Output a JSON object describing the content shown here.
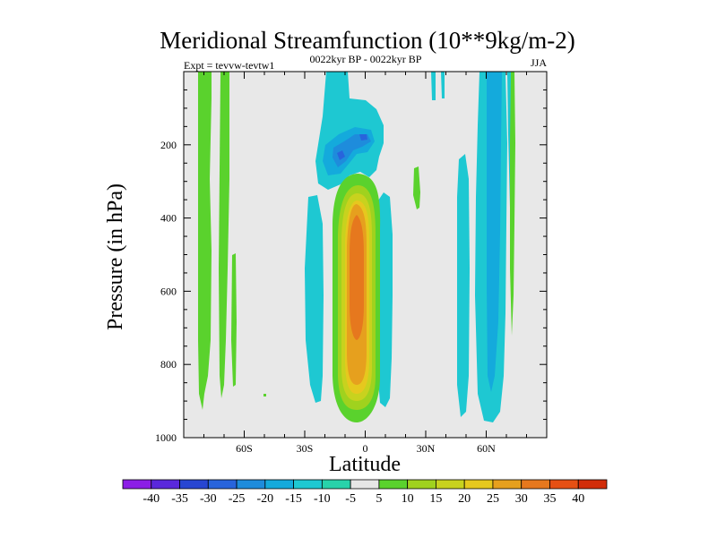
{
  "chart_data": {
    "type": "contour",
    "title": "Meridional Streamfunction (10**9kg/m-2)",
    "left_string": "Expt = tevvw-tevtw1",
    "center_string": "0022kyr BP - 0022kyr BP",
    "right_string": "JJA",
    "xlabel": "Latitude",
    "ylabel": "Pressure (in hPa)",
    "xlim": [
      -90,
      90
    ],
    "ylim": [
      1000,
      0
    ],
    "x_ticks": [
      {
        "value": -60,
        "label": "60S"
      },
      {
        "value": -30,
        "label": "30S"
      },
      {
        "value": 0,
        "label": "0"
      },
      {
        "value": 30,
        "label": "30N"
      },
      {
        "value": 60,
        "label": "60N"
      }
    ],
    "y_ticks": [
      {
        "value": 200,
        "label": "200"
      },
      {
        "value": 400,
        "label": "400"
      },
      {
        "value": 600,
        "label": "600"
      },
      {
        "value": 800,
        "label": "800"
      },
      {
        "value": 1000,
        "label": "1000"
      }
    ],
    "background_color": "#e8e8e8",
    "colorbar": {
      "labels": [
        "-40",
        "-35",
        "-30",
        "-25",
        "-20",
        "-15",
        "-10",
        "-5",
        "5",
        "10",
        "15",
        "20",
        "25",
        "30",
        "35",
        "40"
      ],
      "colors": [
        "#8c1ee6",
        "#5a28dc",
        "#2846d2",
        "#2864dc",
        "#1e8cdc",
        "#14aadc",
        "#1ec8d2",
        "#28d2aa",
        "#e6e6e6",
        "#5ad22d",
        "#a0d21e",
        "#c8d21e",
        "#e6c81e",
        "#e6a01e",
        "#e6781e",
        "#e65014",
        "#d22d0a"
      ]
    },
    "regions": [
      {
        "level": "5 to 10",
        "color": "#5ad22d",
        "lat": [
          -78,
          -76
        ],
        "p": [
          0,
          920
        ]
      },
      {
        "level": "5 to 10",
        "color": "#5ad22d",
        "lat": [
          -72,
          -70
        ],
        "p": [
          0,
          870
        ]
      },
      {
        "level": "5 to 10",
        "color": "#5ad22d",
        "lat": [
          -62,
          -61
        ],
        "p": [
          640,
          930
        ]
      },
      {
        "level": "-5 to -10",
        "color": "#1ec8d2",
        "lat": [
          -15,
          -12
        ],
        "p": [
          0,
          310
        ]
      },
      {
        "level": "-15 to -20",
        "color": "#1e8cdc",
        "lat": [
          -12,
          0
        ],
        "p": [
          180,
          280
        ]
      },
      {
        "level": "-5 to -10",
        "color": "#1ec8d2",
        "lat": [
          -28,
          -24
        ],
        "p": [
          320,
          880
        ]
      },
      {
        "level": "5 to 40",
        "color": "#e6781e",
        "lat": [
          -8,
          4
        ],
        "p": [
          280,
          950
        ],
        "max": 35
      },
      {
        "level": "5 to 10",
        "color": "#5ad22d",
        "lat": [
          24,
          27
        ],
        "p": [
          300,
          460
        ]
      },
      {
        "level": "-5 to -10",
        "color": "#1ec8d2",
        "lat": [
          47,
          51
        ],
        "p": [
          0,
          960
        ]
      },
      {
        "level": "-10 to -15",
        "color": "#14aadc",
        "lat": [
          59,
          64
        ],
        "p": [
          0,
          900
        ]
      },
      {
        "level": "5 to 10",
        "color": "#5ad22d",
        "lat": [
          70,
          72
        ],
        "p": [
          0,
          760
        ]
      }
    ]
  }
}
